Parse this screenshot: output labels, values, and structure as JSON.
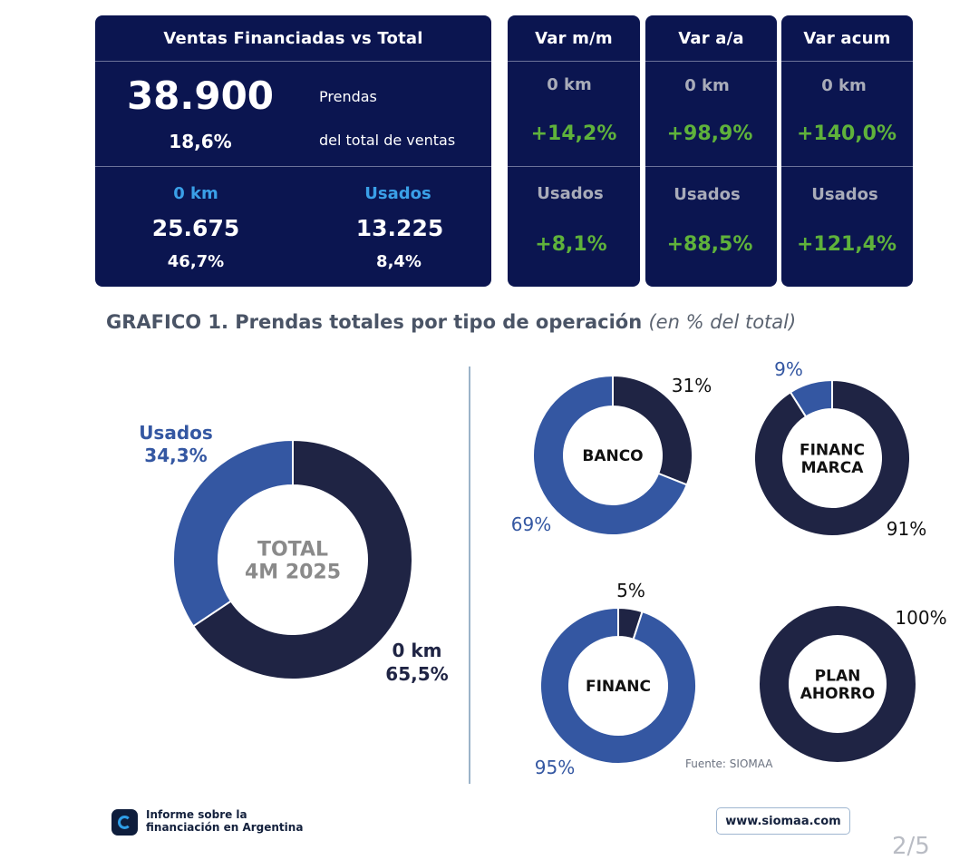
{
  "summary": {
    "title": "Ventas Financiadas vs Total",
    "total_value": "38.900",
    "total_unit": "Prendas",
    "share": "18,6%",
    "share_label": "del total de ventas",
    "okm_label": "0 km",
    "okm_value": "25.675",
    "okm_pct": "46,7%",
    "usados_label": "Usados",
    "usados_value": "13.225",
    "usados_pct": "8,4%"
  },
  "variations": [
    {
      "title": "Var m/m",
      "okm_label": "0 km",
      "okm_value": "+14,2%",
      "usados_label": "Usados",
      "usados_value": "+8,1%"
    },
    {
      "title": "Var a/a",
      "okm_label": "0 km",
      "okm_value": "+98,9%",
      "usados_label": "Usados",
      "usados_value": "+88,5%"
    },
    {
      "title": "Var acum",
      "okm_label": "0 km",
      "okm_value": "+140,0%",
      "usados_label": "Usados",
      "usados_value": "+121,4%"
    }
  ],
  "section": {
    "title": "GRAFICO 1. Prendas totales por tipo de operación",
    "subtitle": "(en % del total)"
  },
  "colors": {
    "navy": "#1f2444",
    "blue": "#3457a2",
    "card": "#0b1550",
    "green": "#5fb23b"
  },
  "chart_data": [
    {
      "type": "pie",
      "title": "TOTAL 4M 2025",
      "center_lines": [
        "TOTAL",
        "4M 2025"
      ],
      "labels": [
        "Usados",
        "0 km"
      ],
      "values": [
        34.3,
        65.5
      ],
      "value_labels": [
        "34,3%",
        "65,5%"
      ]
    },
    {
      "type": "pie",
      "center_lines": [
        "BANCO"
      ],
      "labels": [
        "",
        ""
      ],
      "values": [
        31,
        69
      ],
      "value_labels": [
        "31%",
        "69%"
      ]
    },
    {
      "type": "pie",
      "center_lines": [
        "FINANC",
        "MARCA"
      ],
      "labels": [
        "",
        ""
      ],
      "values": [
        9,
        91
      ],
      "value_labels": [
        "9%",
        "91%"
      ]
    },
    {
      "type": "pie",
      "center_lines": [
        "FINANC"
      ],
      "labels": [
        "",
        ""
      ],
      "values": [
        5,
        95
      ],
      "value_labels": [
        "5%",
        "95%"
      ]
    },
    {
      "type": "pie",
      "center_lines": [
        "PLAN",
        "AHORRO"
      ],
      "labels": [
        ""
      ],
      "values": [
        100
      ],
      "value_labels": [
        "100%"
      ]
    }
  ],
  "source": "Fuente: SIOMAA",
  "footer": {
    "report_line1": "Informe sobre la",
    "report_line2": "financiación en Argentina",
    "website": "www.siomaa.com",
    "page": "2/5"
  }
}
